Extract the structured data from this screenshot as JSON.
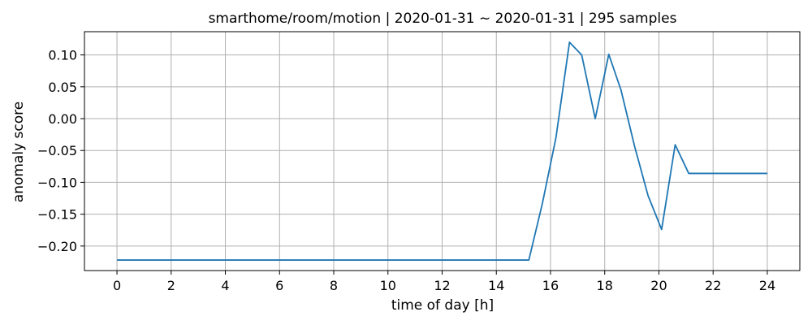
{
  "chart_data": {
    "type": "line",
    "title": "smarthome/room/motion | 2020-01-31 ~ 2020-01-31 | 295 samples",
    "xlabel": "time of day [h]",
    "ylabel": "anomaly score",
    "xlim": [
      -1.2,
      25.2
    ],
    "ylim": [
      -0.2385,
      0.1365
    ],
    "xticks": [
      0,
      2,
      4,
      6,
      8,
      10,
      12,
      14,
      16,
      18,
      20,
      22,
      24
    ],
    "xtick_labels": [
      "0",
      "2",
      "4",
      "6",
      "8",
      "10",
      "12",
      "14",
      "16",
      "18",
      "20",
      "22",
      "24"
    ],
    "yticks": [
      0.1,
      0.05,
      0.0,
      -0.05,
      -0.1,
      -0.15,
      -0.2
    ],
    "ytick_labels": [
      "0.10",
      "0.05",
      "0.00",
      "−0.05",
      "−0.10",
      "−0.15",
      "−0.20"
    ],
    "grid": true,
    "series": [
      {
        "color": "#1f77b4",
        "x": [
          0,
          15.2,
          15.7,
          16.2,
          16.7,
          17.15,
          17.65,
          18.15,
          18.6,
          19.1,
          19.6,
          20.1,
          20.6,
          21.1,
          24
        ],
        "y": [
          -0.222,
          -0.222,
          -0.133,
          -0.03,
          0.12,
          0.1,
          0.0,
          0.101,
          0.045,
          -0.043,
          -0.121,
          -0.174,
          -0.041,
          -0.086,
          -0.086
        ]
      }
    ]
  }
}
